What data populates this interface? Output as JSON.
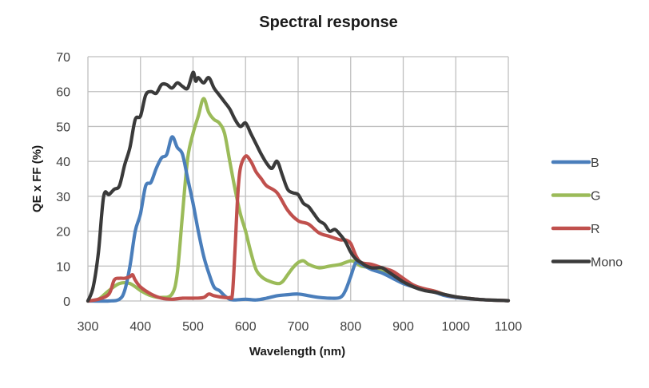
{
  "chart_data": {
    "type": "line",
    "title": "Spectral response",
    "xlabel": "Wavelength (nm)",
    "ylabel": "QE x FF (%)",
    "xlim": [
      300,
      1100
    ],
    "ylim": [
      0,
      70
    ],
    "xticks": [
      300,
      400,
      500,
      600,
      700,
      800,
      900,
      1000,
      1100
    ],
    "yticks": [
      0,
      10,
      20,
      30,
      40,
      50,
      60,
      70
    ],
    "xtick_labels": [
      "300",
      "400",
      "500",
      "600",
      "700",
      "800",
      "900",
      "1000",
      "1100"
    ],
    "ytick_labels": [
      "0",
      "10",
      "20",
      "30",
      "40",
      "50",
      "60",
      "70"
    ],
    "grid": true,
    "legend_position": "right",
    "series": [
      {
        "name": "B",
        "color": "#4a7ebb",
        "x": [
          300,
          340,
          360,
          370,
          380,
          390,
          400,
          410,
          420,
          430,
          440,
          450,
          460,
          470,
          480,
          490,
          500,
          510,
          520,
          530,
          540,
          550,
          560,
          570,
          580,
          600,
          620,
          640,
          660,
          680,
          700,
          720,
          740,
          760,
          780,
          790,
          800,
          810,
          820,
          840,
          860,
          880,
          900,
          920,
          940,
          960,
          980,
          1000,
          1020,
          1040,
          1060,
          1080,
          1100
        ],
        "values": [
          0,
          0,
          0.5,
          3,
          10,
          20,
          25,
          33,
          34,
          38,
          41,
          42,
          47,
          44,
          42,
          35,
          28,
          20,
          13,
          8,
          4,
          3,
          1.5,
          0.5,
          0.3,
          0.5,
          0.3,
          0.8,
          1.5,
          1.8,
          2,
          1.5,
          1,
          0.8,
          1,
          3,
          7,
          11,
          10.5,
          9,
          8,
          6.5,
          5,
          4,
          3.2,
          2.5,
          1.5,
          1,
          0.7,
          0.5,
          0.3,
          0.2,
          0.1
        ]
      },
      {
        "name": "G",
        "color": "#9bbb59",
        "x": [
          300,
          320,
          340,
          360,
          380,
          400,
          420,
          440,
          460,
          470,
          480,
          490,
          500,
          510,
          520,
          530,
          540,
          550,
          560,
          570,
          580,
          590,
          600,
          610,
          620,
          630,
          640,
          660,
          670,
          680,
          690,
          700,
          710,
          720,
          740,
          760,
          780,
          800,
          810,
          820,
          840,
          860,
          880,
          900,
          920,
          940,
          960,
          980,
          1000,
          1020,
          1040,
          1060,
          1080,
          1100
        ],
        "values": [
          0,
          0.5,
          3,
          5,
          5,
          3,
          1.5,
          1,
          2,
          8,
          25,
          41,
          48,
          53,
          58,
          54,
          52,
          51,
          48,
          40,
          32,
          25,
          20,
          14,
          9,
          7,
          6,
          5,
          5.5,
          7.5,
          9.5,
          11,
          11.5,
          10.5,
          9.5,
          10,
          10.5,
          11.5,
          11,
          10,
          9.5,
          9,
          7.5,
          5.5,
          4.2,
          3.4,
          2.8,
          1.8,
          1.2,
          0.8,
          0.5,
          0.3,
          0.2,
          0.1
        ]
      },
      {
        "name": "R",
        "color": "#c0504d",
        "x": [
          300,
          320,
          340,
          350,
          360,
          370,
          380,
          385,
          390,
          400,
          420,
          440,
          460,
          480,
          500,
          520,
          530,
          540,
          560,
          570,
          575,
          580,
          585,
          590,
          600,
          610,
          620,
          630,
          640,
          660,
          680,
          700,
          720,
          740,
          760,
          780,
          790,
          800,
          810,
          820,
          840,
          860,
          880,
          900,
          920,
          940,
          960,
          980,
          1000,
          1020,
          1040,
          1060,
          1080,
          1100
        ],
        "values": [
          0,
          0.5,
          2,
          6,
          6.5,
          6.5,
          7,
          7.5,
          6,
          4,
          2,
          0.8,
          0.5,
          0.8,
          0.8,
          1,
          2,
          1.5,
          1,
          1,
          2,
          15,
          30,
          38,
          41.5,
          40,
          37,
          35,
          33,
          31,
          26,
          23,
          22,
          19.5,
          18.5,
          17.5,
          17.5,
          16.5,
          13,
          11,
          10.5,
          9.5,
          8.5,
          6.5,
          4.5,
          3.5,
          2.8,
          1.8,
          1.2,
          0.8,
          0.5,
          0.3,
          0.2,
          0.1
        ]
      },
      {
        "name": "Mono",
        "color": "#3a3a3a",
        "x": [
          300,
          310,
          320,
          330,
          340,
          350,
          360,
          370,
          380,
          390,
          400,
          410,
          420,
          430,
          440,
          450,
          460,
          470,
          480,
          490,
          500,
          505,
          510,
          520,
          530,
          540,
          550,
          560,
          570,
          580,
          590,
          600,
          610,
          620,
          630,
          640,
          650,
          660,
          670,
          680,
          690,
          700,
          710,
          720,
          730,
          740,
          750,
          760,
          770,
          780,
          790,
          800,
          810,
          820,
          830,
          840,
          850,
          860,
          870,
          880,
          900,
          920,
          940,
          960,
          980,
          1000,
          1020,
          1040,
          1060,
          1080,
          1100
        ],
        "values": [
          0,
          4,
          14,
          30,
          30.5,
          32,
          33,
          39,
          44,
          52,
          53,
          59,
          60,
          59.5,
          62,
          62,
          61,
          62.5,
          61.5,
          61,
          65.5,
          63,
          64,
          62.5,
          64,
          61,
          59,
          57,
          55,
          52,
          50,
          51,
          48,
          45,
          42,
          39.5,
          38,
          40,
          36,
          32,
          31,
          30.5,
          28,
          27,
          25,
          23,
          22,
          20,
          20.5,
          19,
          17,
          14,
          12,
          11,
          10,
          9.5,
          9.5,
          9.5,
          8.5,
          7.5,
          5.5,
          4,
          3,
          2.5,
          1.8,
          1.2,
          0.8,
          0.5,
          0.3,
          0.2,
          0.1
        ]
      }
    ]
  }
}
